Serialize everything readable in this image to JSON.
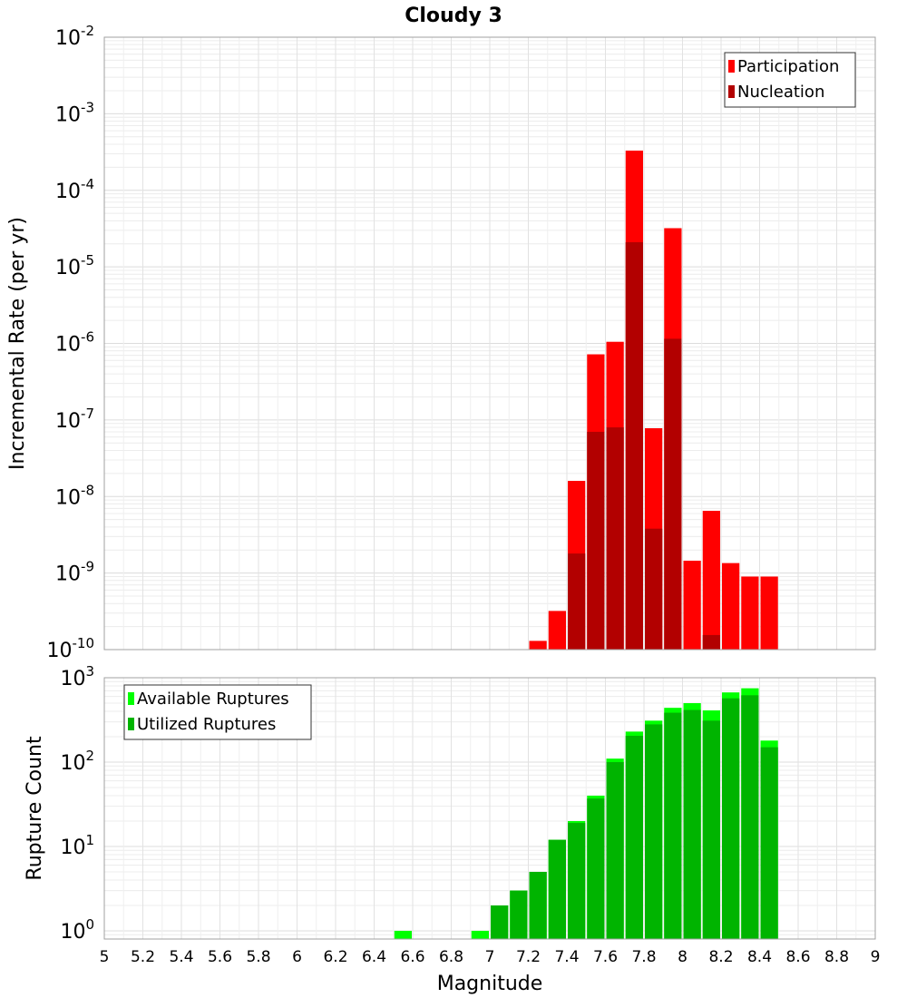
{
  "chart_data": {
    "type": "bar",
    "title": "Cloudy 3",
    "xlabel": "Magnitude",
    "xlim": [
      5,
      9
    ],
    "xticks": [
      "5",
      "5.2",
      "5.4",
      "5.6",
      "5.8",
      "6",
      "6.2",
      "6.4",
      "6.6",
      "6.8",
      "7",
      "7.2",
      "7.4",
      "7.6",
      "7.8",
      "8",
      "8.2",
      "8.4",
      "8.6",
      "8.8",
      "9"
    ],
    "bin_width": 0.1,
    "grid": true,
    "panels": [
      {
        "ylabel": "Incremental Rate (per yr)",
        "yscale": "log",
        "ylim": [
          1e-10,
          0.01
        ],
        "yticks": [
          {
            "base": "10",
            "exp": "-10"
          },
          {
            "base": "10",
            "exp": "-9"
          },
          {
            "base": "10",
            "exp": "-8"
          },
          {
            "base": "10",
            "exp": "-7"
          },
          {
            "base": "10",
            "exp": "-6"
          },
          {
            "base": "10",
            "exp": "-5"
          },
          {
            "base": "10",
            "exp": "-4"
          },
          {
            "base": "10",
            "exp": "-3"
          },
          {
            "base": "10",
            "exp": "-2"
          }
        ],
        "legend_position": "top-right",
        "series": [
          {
            "name": "Participation",
            "color": "#ff0000",
            "x": [
              7.25,
              7.35,
              7.45,
              7.55,
              7.65,
              7.75,
              7.85,
              7.95,
              8.05,
              8.15,
              8.25,
              8.35,
              8.45
            ],
            "values": [
              1.3e-10,
              3.2e-10,
              1.6e-08,
              7.2e-07,
              1.05e-06,
              0.00033,
              7.8e-08,
              3.2e-05,
              1.45e-09,
              6.5e-09,
              1.35e-09,
              9e-10,
              9e-10
            ]
          },
          {
            "name": "Nucleation",
            "color": "#b20000",
            "x": [
              7.45,
              7.55,
              7.65,
              7.75,
              7.85,
              7.95,
              8.15
            ],
            "values": [
              1.8e-09,
              7e-08,
              8e-08,
              2.1e-05,
              3.8e-09,
              1.15e-06,
              1.55e-10
            ]
          }
        ]
      },
      {
        "ylabel": "Rupture Count",
        "yscale": "log",
        "ylim": [
          0.8,
          1000
        ],
        "yticks": [
          {
            "base": "10",
            "exp": "0"
          },
          {
            "base": "10",
            "exp": "1"
          },
          {
            "base": "10",
            "exp": "2"
          },
          {
            "base": "10",
            "exp": "3"
          }
        ],
        "legend_position": "top-left",
        "series": [
          {
            "name": "Available Ruptures",
            "color": "#00ff00",
            "x": [
              6.55,
              6.95,
              7.05,
              7.15,
              7.25,
              7.35,
              7.45,
              7.55,
              7.65,
              7.75,
              7.85,
              7.95,
              8.05,
              8.15,
              8.25,
              8.35,
              8.45
            ],
            "values": [
              1,
              1,
              2,
              3,
              5,
              12,
              20,
              40,
              110,
              230,
              310,
              440,
              500,
              410,
              670,
              750,
              180
            ]
          },
          {
            "name": "Utilized Ruptures",
            "color": "#00b400",
            "x": [
              7.05,
              7.15,
              7.25,
              7.35,
              7.45,
              7.55,
              7.65,
              7.75,
              7.85,
              7.95,
              8.05,
              8.15,
              8.25,
              8.35,
              8.45
            ],
            "values": [
              2,
              3,
              5,
              12,
              19,
              37,
              100,
              205,
              280,
              385,
              415,
              310,
              570,
              620,
              150
            ]
          }
        ]
      }
    ]
  }
}
